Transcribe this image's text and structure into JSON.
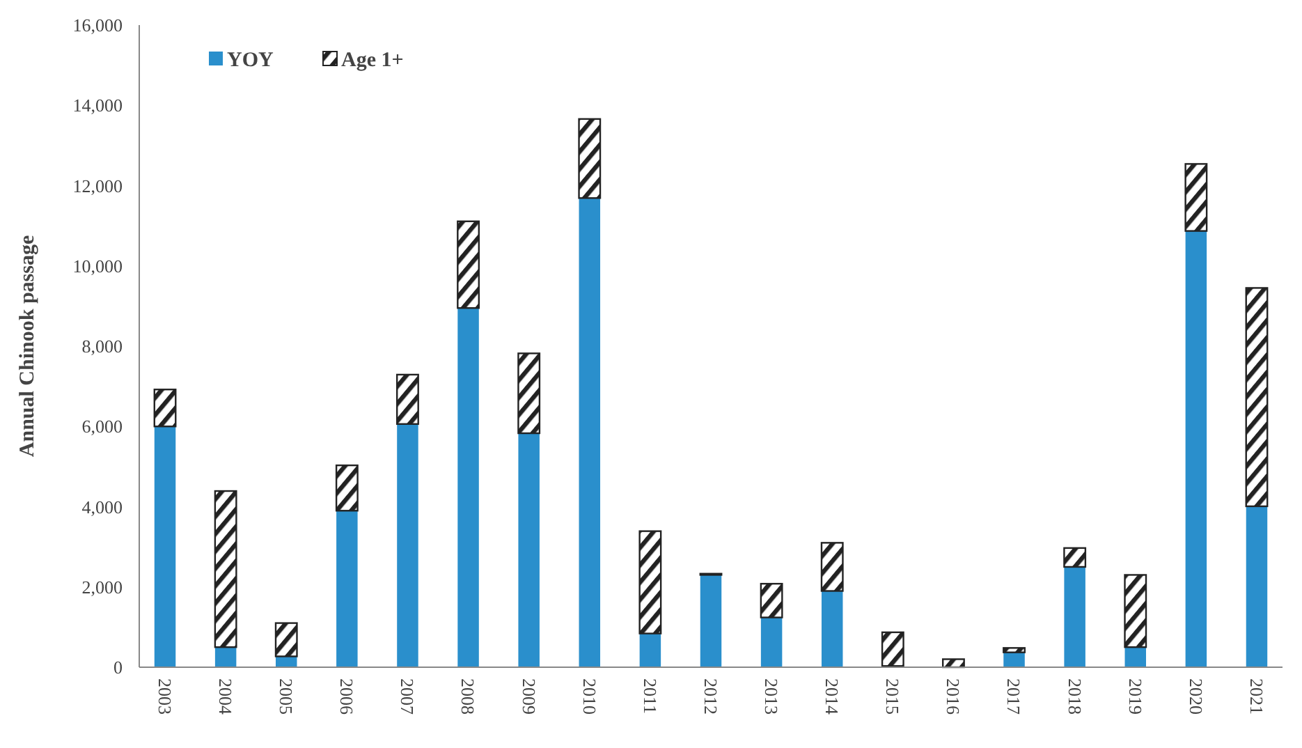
{
  "chart_data": {
    "type": "bar",
    "stacked": true,
    "ylabel": "Annual Chinook passage",
    "categories": [
      "2003",
      "2004",
      "2005",
      "2006",
      "2007",
      "2008",
      "2009",
      "2010",
      "2011",
      "2012",
      "2013",
      "2014",
      "2015",
      "2016",
      "2017",
      "2018",
      "2019",
      "2020",
      "2021"
    ],
    "series": [
      {
        "name": "YOY",
        "color": "#2a8fcc",
        "values": [
          6000,
          500,
          270,
          3900,
          6060,
          8950,
          5830,
          11690,
          840,
          2300,
          1240,
          1900,
          30,
          0,
          370,
          2500,
          500,
          10870,
          4010
        ]
      },
      {
        "name": "Age 1+",
        "color": "#222222",
        "values": [
          920,
          3890,
          830,
          1130,
          1230,
          2160,
          1990,
          1970,
          2550,
          30,
          840,
          1200,
          840,
          200,
          110,
          470,
          1800,
          1670,
          5440
        ]
      }
    ],
    "ylim": [
      0,
      16000
    ],
    "yticks": [
      {
        "value": 0,
        "label": "0"
      },
      {
        "value": 2000,
        "label": "2,000"
      },
      {
        "value": 4000,
        "label": "4,000"
      },
      {
        "value": 6000,
        "label": "6,000"
      },
      {
        "value": 8000,
        "label": "8,000"
      },
      {
        "value": 10000,
        "label": "10,000"
      },
      {
        "value": 12000,
        "label": "12,000"
      },
      {
        "value": 14000,
        "label": "14,000"
      },
      {
        "value": 16000,
        "label": "16,000"
      }
    ],
    "legend": "top left"
  }
}
